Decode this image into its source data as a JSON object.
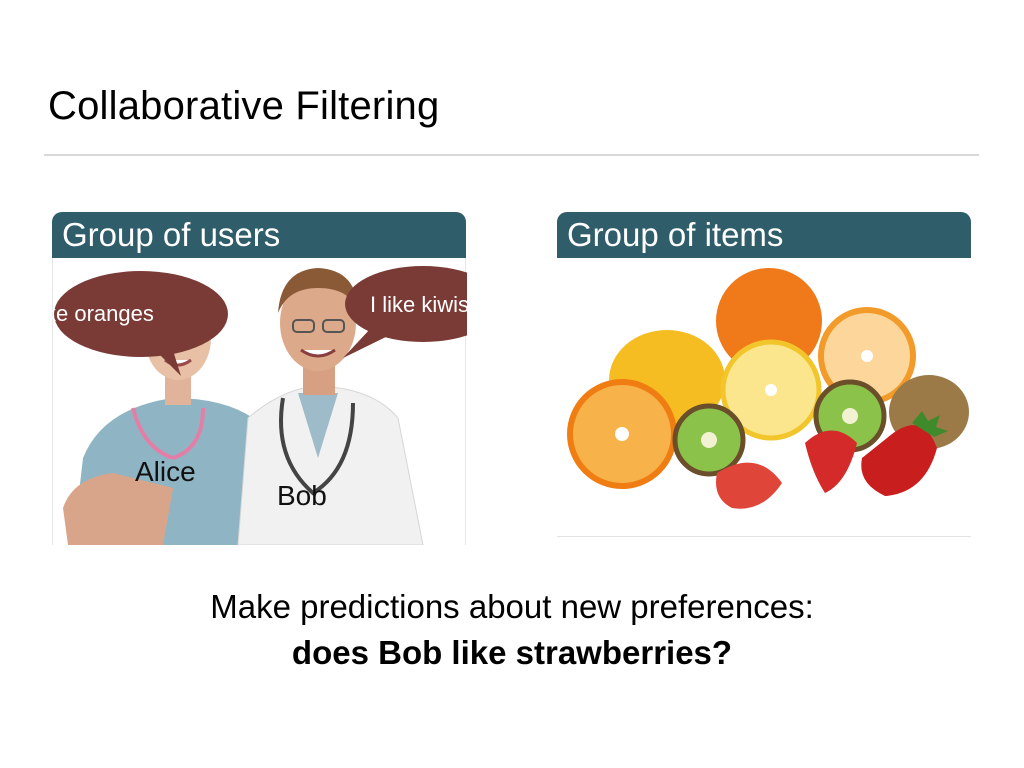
{
  "slide": {
    "title": "Collaborative Filtering",
    "users_panel": {
      "heading": "Group of users",
      "bubble_alice": "I like oranges",
      "bubble_bob": "I like kiwis",
      "name_alice": "Alice",
      "name_bob": "Bob"
    },
    "items_panel": {
      "heading": "Group of items"
    },
    "caption_line1": "Make predictions about new preferences:",
    "caption_line2": "does Bob like strawberries?"
  },
  "colors": {
    "panel_header": "#2f5d69",
    "speech_bubble": "#7a3b36"
  }
}
